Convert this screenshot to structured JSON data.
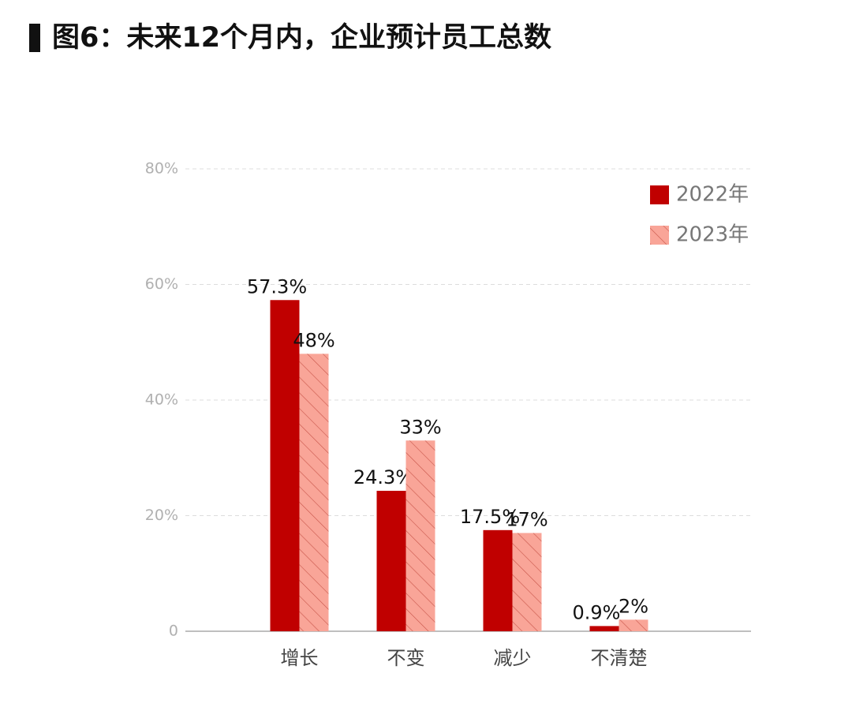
{
  "chart_data": {
    "type": "bar",
    "title": "图6：未来12个月内，企业预计员工总数",
    "categories": [
      "增长",
      "不变",
      "减少",
      "不清楚"
    ],
    "series": [
      {
        "name": "2022年",
        "color": "#c00000",
        "hatch": false,
        "values": [
          57.3,
          24.3,
          17.5,
          0.9
        ],
        "value_labels": [
          "57.3%",
          "24.3%",
          "17.5%",
          "0.9%"
        ]
      },
      {
        "name": "2023年",
        "color": "#f9a598",
        "hatch": true,
        "values": [
          48,
          33,
          17,
          2
        ],
        "value_labels": [
          "48%",
          "33%",
          "17%",
          "2%"
        ]
      }
    ],
    "ylim": [
      0,
      80
    ],
    "yticks": [
      0,
      {
        "value": 20,
        "label": "20%"
      },
      {
        "value": 40,
        "label": "40%"
      },
      {
        "value": 60,
        "label": "60%"
      },
      {
        "value": 80,
        "label": "80%"
      }
    ],
    "grid": true,
    "legend": "top-right"
  }
}
